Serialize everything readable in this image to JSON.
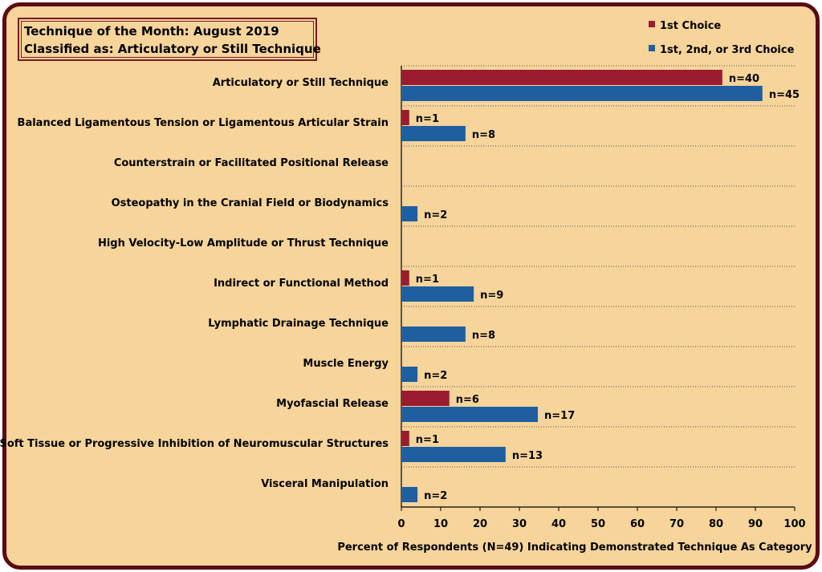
{
  "title_lines": [
    "Technique of the Month: August 2019",
    "Classified as: Articulatory or Still Technique"
  ],
  "legend": [
    {
      "label": "1st Choice",
      "color": "#9b1b30"
    },
    {
      "label": "1st, 2nd, or 3rd Choice",
      "color": "#1f5fa0"
    }
  ],
  "chart_data": {
    "type": "bar",
    "orientation": "horizontal",
    "categories": [
      "Articulatory or Still Technique",
      "Balanced Ligamentous Tension or Ligamentous Articular Strain",
      "Counterstrain or Facilitated Positional Release",
      "Osteopathy in the Cranial Field or Biodynamics",
      "High Velocity-Low Amplitude or Thrust Technique",
      "Indirect or Functional Method",
      "Lymphatic Drainage Technique",
      "Muscle Energy",
      "Myofascial Release",
      "Soft Tissue or Progressive Inhibition of Neuromuscular Structures",
      "Visceral Manipulation"
    ],
    "series": [
      {
        "name": "1st Choice",
        "color": "#9b1b30",
        "values": [
          81.6,
          2.0,
          null,
          null,
          null,
          2.0,
          null,
          null,
          12.2,
          2.0,
          null
        ],
        "labels": [
          "n=40",
          "n=1",
          "",
          "",
          "",
          "n=1",
          "",
          "",
          "n=6",
          "n=1",
          ""
        ]
      },
      {
        "name": "1st, 2nd, or 3rd Choice",
        "color": "#1f5fa0",
        "values": [
          91.8,
          16.3,
          null,
          4.1,
          null,
          18.4,
          16.3,
          4.1,
          34.7,
          26.5,
          4.1
        ],
        "labels": [
          "n=45",
          "n=8",
          "",
          "n=2",
          "",
          "n=9",
          "n=8",
          "n=2",
          "n=17",
          "n=13",
          "n=2"
        ]
      }
    ],
    "xlabel": "Percent of Respondents (N=49) Indicating Demonstrated Technique As Category",
    "ylabel": "",
    "xlim": [
      0,
      100
    ],
    "xticks": [
      "0",
      "10",
      "20",
      "30",
      "40",
      "50",
      "60",
      "70",
      "80",
      "90",
      "100"
    ],
    "grid": "horizontal dotted separators",
    "legend_position": "top-right"
  }
}
